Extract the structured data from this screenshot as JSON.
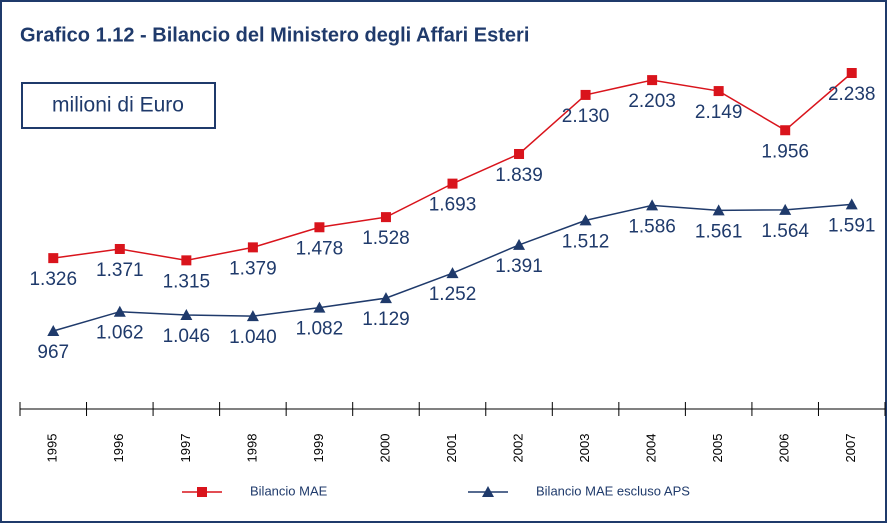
{
  "chart_data": {
    "type": "line",
    "title": "Grafico 1.12 - Bilancio del Ministero degli Affari Esteri",
    "subtitle": "milioni di Euro",
    "categories": [
      "1995",
      "1996",
      "1997",
      "1998",
      "1999",
      "2000",
      "2001",
      "2002",
      "2003",
      "2004",
      "2005",
      "2006",
      "2007"
    ],
    "series": [
      {
        "name": "Bilancio MAE",
        "color": "#d9141c",
        "marker": "square",
        "values": [
          1326,
          1371,
          1315,
          1379,
          1478,
          1528,
          1693,
          1839,
          2130,
          2203,
          2149,
          1956,
          2238
        ],
        "value_labels": [
          "1.326",
          "1.371",
          "1.315",
          "1.379",
          "1.478",
          "1.528",
          "1.693",
          "1.839",
          "2.130",
          "2.203",
          "2.149",
          "1.956",
          "2.238"
        ]
      },
      {
        "name": "Bilancio MAE escluso APS",
        "color": "#1f3a6b",
        "marker": "triangle",
        "values": [
          967,
          1062,
          1046,
          1040,
          1082,
          1129,
          1252,
          1391,
          1512,
          1586,
          1561,
          1564,
          1591
        ],
        "value_labels": [
          "967",
          "1.062",
          "1.046",
          "1.040",
          "1.082",
          "1.129",
          "1.252",
          "1.391",
          "1.512",
          "1.586",
          "1.561",
          "1.564",
          "1.591"
        ]
      }
    ]
  }
}
